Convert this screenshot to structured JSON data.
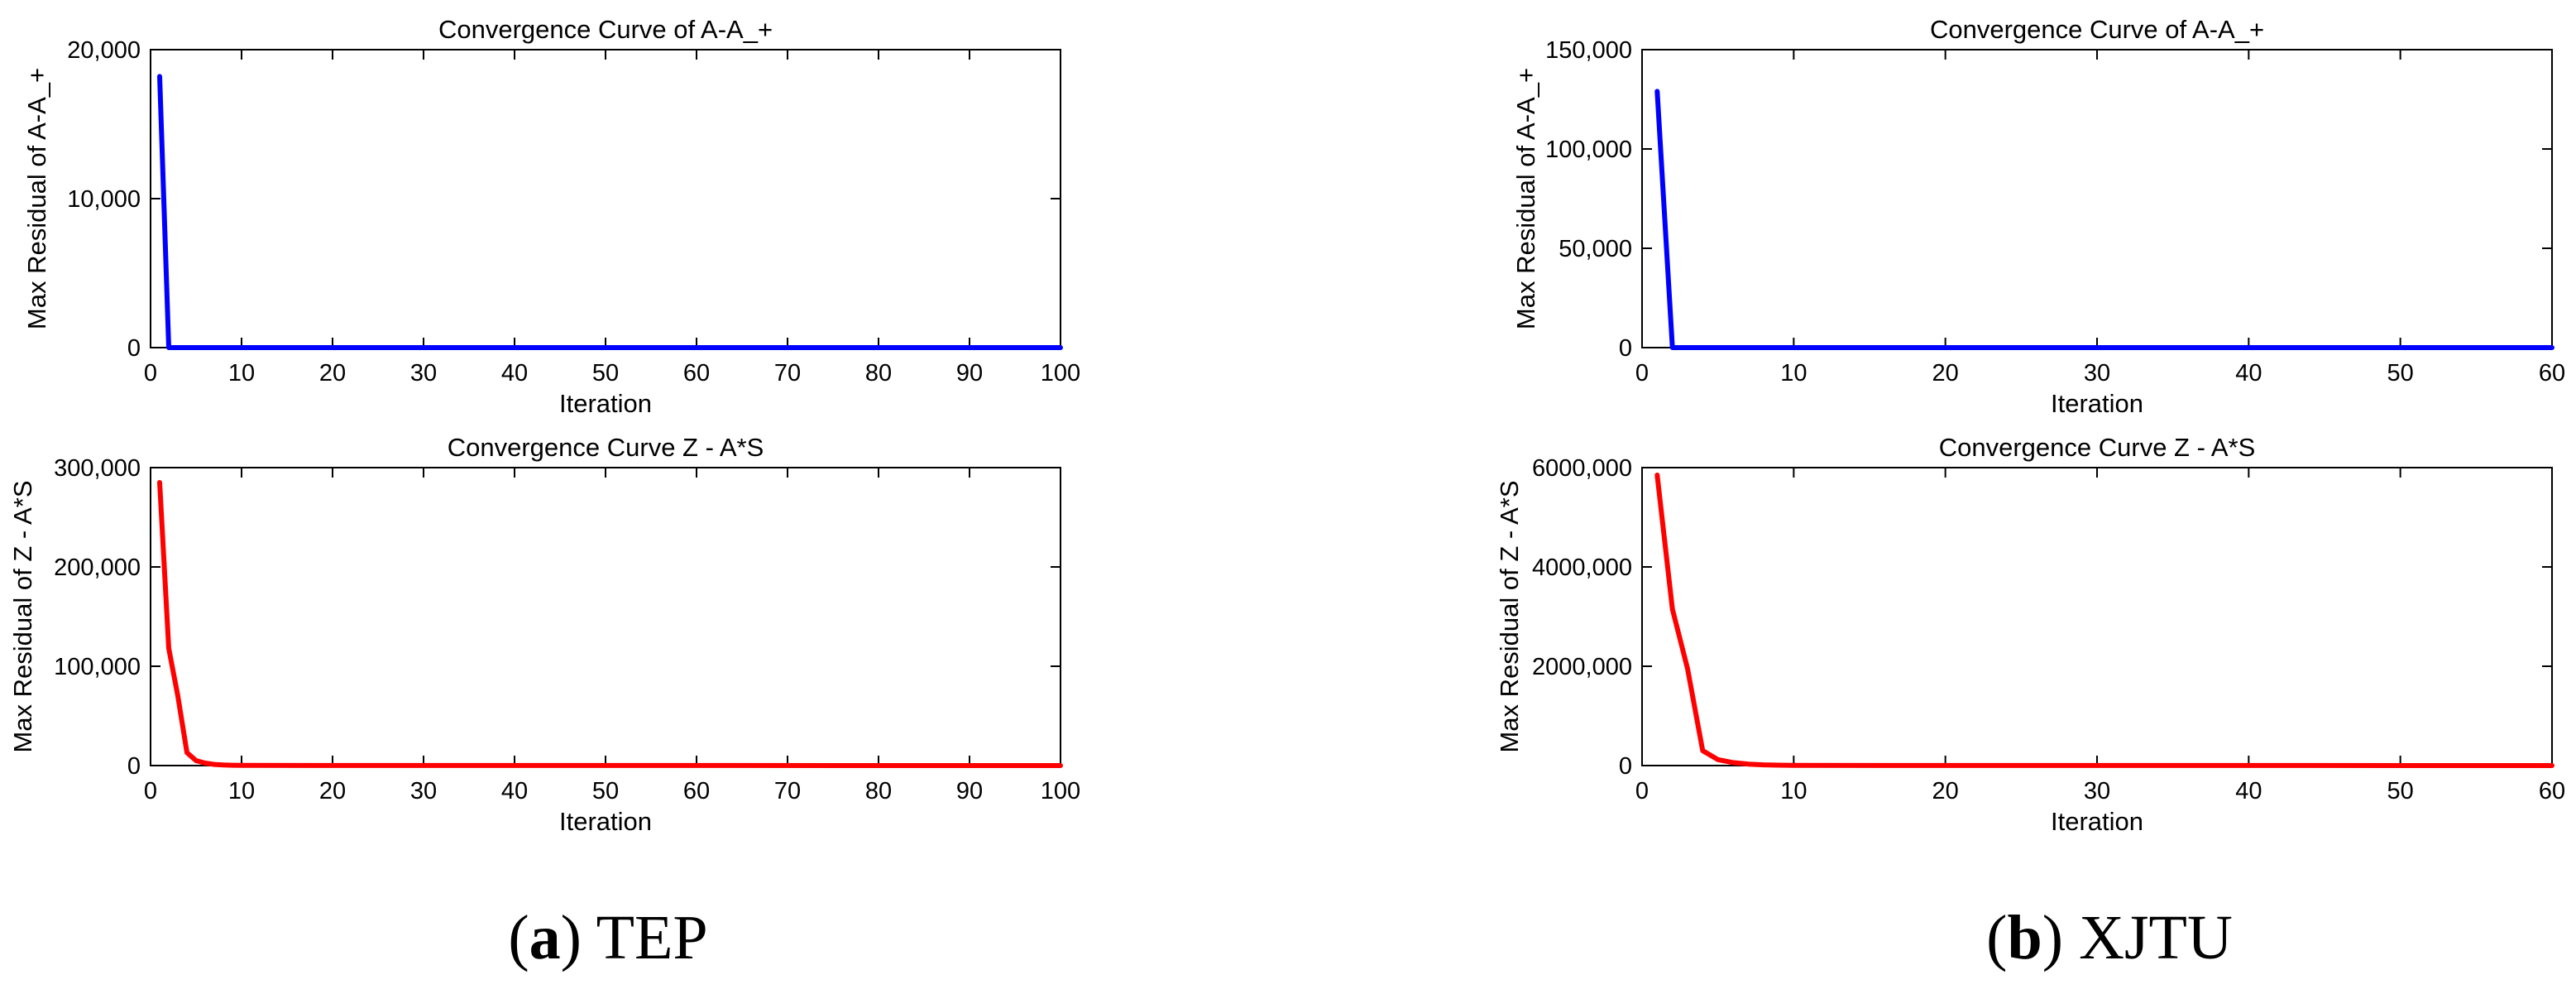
{
  "panels": [
    {
      "letter": "a",
      "name": "TEP",
      "plots": [
        {
          "title": "Convergence Curve of A-A_+",
          "xlabel": "Iteration",
          "ylabel": "Max Residual of A-A_+"
        },
        {
          "title": "Convergence Curve Z - A*S",
          "xlabel": "Iteration",
          "ylabel": "Max Residual of Z - A*S"
        }
      ]
    },
    {
      "letter": "b",
      "name": "XJTU",
      "plots": [
        {
          "title": "Convergence Curve of A-A_+",
          "xlabel": "Iteration",
          "ylabel": "Max Residual of A-A_+"
        },
        {
          "title": "Convergence Curve Z - A*S",
          "xlabel": "Iteration",
          "ylabel": "Max Residual of Z - A*S"
        }
      ]
    }
  ],
  "colors": {
    "series_a": "#0000ff",
    "series_z": "#ff0000",
    "axes": "#000000",
    "background": "#ffffff"
  },
  "chart_data": [
    {
      "type": "line",
      "title": "Convergence Curve of A-A_+",
      "xlabel": "Iteration",
      "ylabel": "Max Residual of A-A_+",
      "xlim": [
        0,
        100
      ],
      "ylim": [
        0,
        20000
      ],
      "xticks": [
        0,
        10,
        20,
        30,
        40,
        50,
        60,
        70,
        80,
        90,
        100
      ],
      "xtick_labels": [
        "0",
        "10",
        "20",
        "30",
        "40",
        "50",
        "60",
        "70",
        "80",
        "90",
        "100"
      ],
      "yticks": [
        0,
        10000,
        20000
      ],
      "ytick_labels": [
        "0",
        "10,000",
        "20,000"
      ],
      "grid": false,
      "color": "#0000ff",
      "x": [
        1,
        2,
        100
      ],
      "y": [
        18200,
        0,
        0
      ]
    },
    {
      "type": "line",
      "title": "Convergence Curve Z - A*S",
      "xlabel": "Iteration",
      "ylabel": "Max Residual of Z - A*S",
      "xlim": [
        0,
        100
      ],
      "ylim": [
        0,
        300000
      ],
      "xticks": [
        0,
        10,
        20,
        30,
        40,
        50,
        60,
        70,
        80,
        90,
        100
      ],
      "xtick_labels": [
        "0",
        "10",
        "20",
        "30",
        "40",
        "50",
        "60",
        "70",
        "80",
        "90",
        "100"
      ],
      "yticks": [
        0,
        100000,
        200000,
        300000
      ],
      "ytick_labels": [
        "0",
        "100,000",
        "200,000",
        "300,000"
      ],
      "grid": false,
      "color": "#ff0000",
      "x": [
        1,
        2,
        3,
        4,
        5,
        6,
        7,
        8,
        9,
        10,
        100
      ],
      "y": [
        285000,
        118000,
        70000,
        13000,
        5000,
        2500,
        1200,
        600,
        300,
        150,
        0
      ]
    },
    {
      "type": "line",
      "title": "Convergence Curve of A-A_+",
      "xlabel": "Iteration",
      "ylabel": "Max Residual of A-A_+",
      "xlim": [
        0,
        60
      ],
      "ylim": [
        0,
        150000
      ],
      "xticks": [
        0,
        10,
        20,
        30,
        40,
        50,
        60
      ],
      "xtick_labels": [
        "0",
        "10",
        "20",
        "30",
        "40",
        "50",
        "60"
      ],
      "yticks": [
        0,
        50000,
        100000,
        150000
      ],
      "ytick_labels": [
        "0",
        "50,000",
        "100,000",
        "150,000"
      ],
      "grid": false,
      "color": "#0000ff",
      "x": [
        1,
        2,
        60
      ],
      "y": [
        129000,
        0,
        0
      ]
    },
    {
      "type": "line",
      "title": "Convergence Curve Z - A*S",
      "xlabel": "Iteration",
      "ylabel": "Max Residual of Z - A*S",
      "xlim": [
        0,
        60
      ],
      "ylim": [
        0,
        6000000
      ],
      "xticks": [
        0,
        10,
        20,
        30,
        40,
        50,
        60
      ],
      "xtick_labels": [
        "0",
        "10",
        "20",
        "30",
        "40",
        "50",
        "60"
      ],
      "yticks": [
        0,
        2000000,
        4000000,
        6000000
      ],
      "ytick_labels": [
        "0",
        "2000,000",
        "4000,000",
        "6000,000"
      ],
      "grid": false,
      "color": "#ff0000",
      "x": [
        1,
        2,
        3,
        4,
        5,
        6,
        7,
        8,
        9,
        10,
        60
      ],
      "y": [
        5850000,
        3150000,
        1950000,
        300000,
        120000,
        60000,
        30000,
        15000,
        8000,
        4000,
        0
      ]
    }
  ]
}
